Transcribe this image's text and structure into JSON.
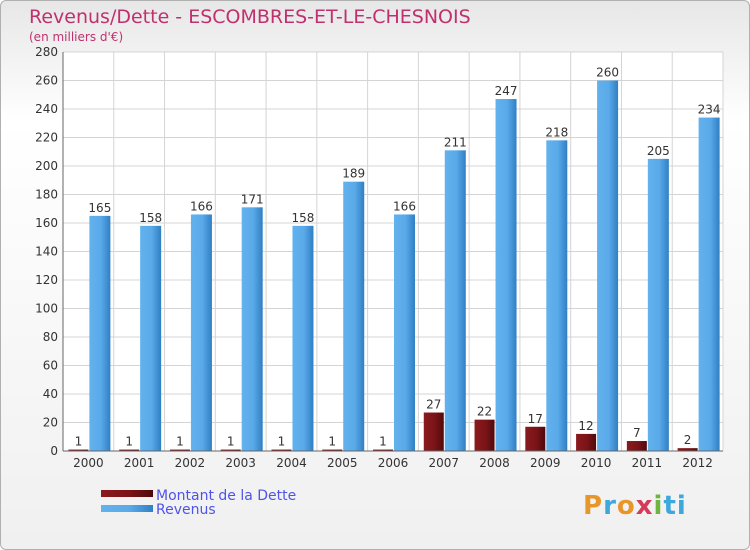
{
  "title": "Revenus/Dette - ESCOMBRES-ET-LE-CHESNOIS",
  "subtitle": "(en milliers d'€)",
  "logo": {
    "text": "Proxiti",
    "letters": [
      "P",
      "r",
      "o",
      "x",
      "i",
      "ti"
    ]
  },
  "colors": {
    "dette": "#6b0f12",
    "revenus": "#3b8fd6",
    "grid": "#d4d4d4",
    "text": "#333333",
    "legend_text": "#4f54e8"
  },
  "chart_data": {
    "type": "bar",
    "title": "Revenus/Dette - ESCOMBRES-ET-LE-CHESNOIS",
    "ylabel": "(en milliers d'€)",
    "xlabel": "",
    "ylim": [
      0,
      280
    ],
    "yticks": [
      0,
      20,
      40,
      60,
      80,
      100,
      120,
      140,
      160,
      180,
      200,
      220,
      240,
      260,
      280
    ],
    "grid": true,
    "categories": [
      "2000",
      "2001",
      "2002",
      "2003",
      "2004",
      "2005",
      "2006",
      "2007",
      "2008",
      "2009",
      "2010",
      "2011",
      "2012"
    ],
    "series": [
      {
        "name": "Montant de la Dette",
        "values": [
          1,
          1,
          1,
          1,
          1,
          1,
          1,
          27,
          22,
          17,
          12,
          7,
          2
        ]
      },
      {
        "name": "Revenus",
        "values": [
          165,
          158,
          166,
          171,
          158,
          189,
          166,
          211,
          247,
          218,
          260,
          205,
          234
        ]
      }
    ],
    "legend": [
      "Montant de la Dette",
      "Revenus"
    ],
    "legend_position": "bottom-left"
  }
}
